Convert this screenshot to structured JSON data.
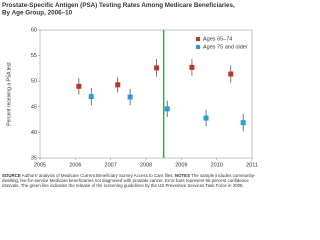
{
  "chart_data": {
    "type": "scatter",
    "title": "Prostate-Specific Antigen (PSA) Testing Rates Among Medicare Beneficiaries, By Age Group, 2006–10",
    "y_label": "Percent receiving a PSA test",
    "xlim": [
      2005,
      2011
    ],
    "xticks": [
      2005,
      2006,
      2007,
      2008,
      2009,
      2010,
      2011
    ],
    "ylim": [
      35,
      60
    ],
    "yticks": [
      35,
      40,
      45,
      50,
      55,
      60
    ],
    "reference_line_x": 2008.5,
    "reference_line_color": "#3aa84a",
    "legend": "upper right",
    "series": [
      {
        "name": "Ages 65–74",
        "color": "#c0332b",
        "x": [
          2006.1,
          2007.2,
          2008.3,
          2009.3,
          2010.4
        ],
        "values": [
          49,
          49.3,
          52.6,
          52.7,
          51.4
        ],
        "errors": [
          1.6,
          1.5,
          1.7,
          1.6,
          1.7
        ]
      },
      {
        "name": "Ages 75 and older",
        "color": "#2a9bd6",
        "x": [
          2006.45,
          2007.55,
          2008.6,
          2009.7,
          2010.75
        ],
        "values": [
          47,
          46.9,
          44.6,
          42.8,
          41.9
        ],
        "errors": [
          1.7,
          1.6,
          1.6,
          1.6,
          1.7
        ]
      }
    ],
    "source_label": "SOURCE",
    "source_text": "Authors' analysis of Medicare Current Beneficiary Survey Access to Care files.",
    "notes_label": "NOTES",
    "notes_text": "The sample includes community-dwelling, fee-for-service Medicare beneficiaries not diagnosed with prostate cancer. Error bars represent 95 percent confidence intervals. The green line indicates the release of the screening guidelines by the US Preventive Services Task Force in 2008."
  }
}
